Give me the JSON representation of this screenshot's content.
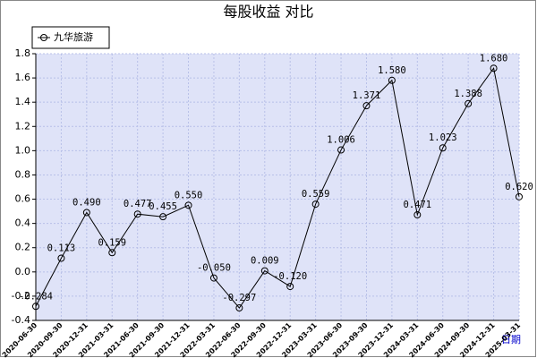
{
  "chart_data": {
    "type": "line",
    "title": "每股收益 对比",
    "x_label": "日期",
    "categories": [
      "2020-06-30",
      "2020-09-30",
      "2020-12-31",
      "2021-03-31",
      "2021-06-30",
      "2021-09-30",
      "2021-12-31",
      "2022-03-31",
      "2022-06-30",
      "2022-09-30",
      "2022-12-31",
      "2023-03-31",
      "2023-06-30",
      "2023-09-30",
      "2023-12-31",
      "2024-03-31",
      "2024-06-30",
      "2024-09-30",
      "2024-12-31",
      "2025-03-31"
    ],
    "series": [
      {
        "name": "九华旅游",
        "color": "#000000",
        "values": [
          -0.284,
          0.113,
          0.49,
          0.159,
          0.477,
          0.455,
          0.55,
          -0.05,
          -0.297,
          0.009,
          -0.12,
          0.559,
          1.006,
          1.371,
          1.58,
          0.471,
          1.023,
          1.388,
          1.68,
          0.62
        ],
        "value_labels": [
          "-0.284",
          "0.113",
          "0.490",
          "0.159",
          "0.477",
          "0.455",
          "0.550",
          "-0.050",
          "-0.297",
          "0.009",
          "-0.120",
          "0.559",
          "1.006",
          "1.371",
          "1.580",
          "0.471",
          "1.023",
          "1.388",
          "1.680",
          "0.620"
        ]
      }
    ],
    "ylim": [
      -0.4,
      1.8
    ],
    "yticks": [
      {
        "value": -0.4,
        "label": "-0.4"
      },
      {
        "value": -0.2,
        "label": "-0.2"
      },
      {
        "value": 0,
        "label": "0.0"
      },
      0.2,
      0.4,
      0.6,
      0.8,
      {
        "value": 1,
        "label": "1.0"
      },
      1.2,
      1.4,
      1.6,
      1.8
    ],
    "grid": true,
    "legend": "top-left"
  }
}
